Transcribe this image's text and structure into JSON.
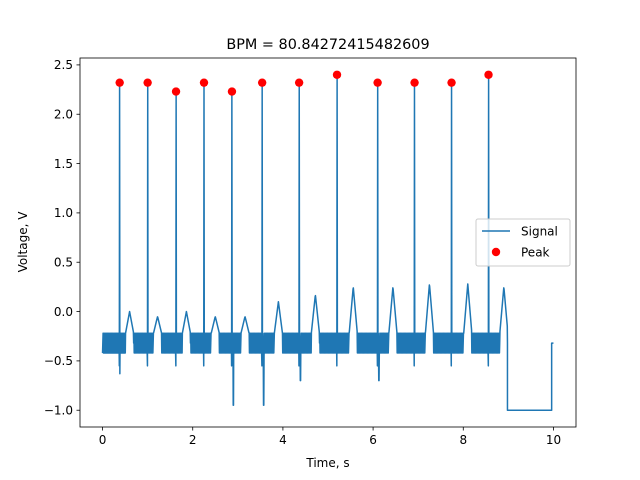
{
  "chart_data": {
    "type": "line",
    "title": "BPM = 80.84272415482609",
    "xlabel": "Time, s",
    "ylabel": "Voltage, V",
    "xlim": [
      -0.5,
      10.5
    ],
    "ylim": [
      -1.17,
      2.57
    ],
    "xticks": [
      0,
      2,
      4,
      6,
      8,
      10
    ],
    "yticks": [
      -1.0,
      -0.5,
      0.0,
      0.5,
      1.0,
      1.5,
      2.0,
      2.5
    ],
    "xtick_labels": [
      "0",
      "2",
      "4",
      "6",
      "8",
      "10"
    ],
    "ytick_labels": [
      "−1.0",
      "−0.5",
      "0.0",
      "0.5",
      "1.0",
      "1.5",
      "2.0",
      "2.5"
    ],
    "grid": false,
    "legend_position": "center-right",
    "legend": [
      {
        "label": "Signal",
        "kind": "line",
        "color": "#1f77b4"
      },
      {
        "label": "Peak",
        "kind": "marker",
        "color": "#ff0000"
      }
    ],
    "series": [
      {
        "name": "Signal",
        "type": "line",
        "color": "#1f77b4",
        "peak_times": [
          0.38,
          1.0,
          1.63,
          2.25,
          2.87,
          3.54,
          4.36,
          5.2,
          6.1,
          6.92,
          7.74,
          8.56
        ],
        "peak_values": [
          2.32,
          2.32,
          2.23,
          2.32,
          2.23,
          2.32,
          2.32,
          2.4,
          2.32,
          2.32,
          2.32,
          2.4
        ],
        "baseline_band": [
          -0.42,
          -0.22
        ],
        "secondary_wave_times": [
          0.6,
          1.22,
          1.86,
          2.5,
          3.16,
          3.9,
          4.72,
          5.56,
          6.44,
          7.25,
          8.1,
          8.9
        ],
        "secondary_wave_values": [
          -0.0,
          -0.05,
          0.0,
          -0.05,
          -0.05,
          0.1,
          0.17,
          0.25,
          0.25,
          0.28,
          0.28,
          0.25
        ],
        "dips": [
          [
            0.35,
            -0.63
          ],
          [
            2.87,
            -0.95
          ],
          [
            3.54,
            -0.95
          ],
          [
            4.36,
            -0.7
          ],
          [
            6.1,
            -0.7
          ]
        ],
        "flat_segment": {
          "x": [
            8.98,
            9.96
          ],
          "y": -1.0
        },
        "end_value": -0.32,
        "x_range": [
          0.0,
          10.0
        ]
      },
      {
        "name": "Peak",
        "type": "scatter",
        "color": "#ff0000",
        "x": [
          0.38,
          1.0,
          1.63,
          2.25,
          2.87,
          3.54,
          4.36,
          5.2,
          6.1,
          6.92,
          7.74,
          8.56
        ],
        "y": [
          2.32,
          2.32,
          2.23,
          2.32,
          2.23,
          2.32,
          2.32,
          2.4,
          2.32,
          2.32,
          2.32,
          2.4
        ]
      }
    ]
  }
}
